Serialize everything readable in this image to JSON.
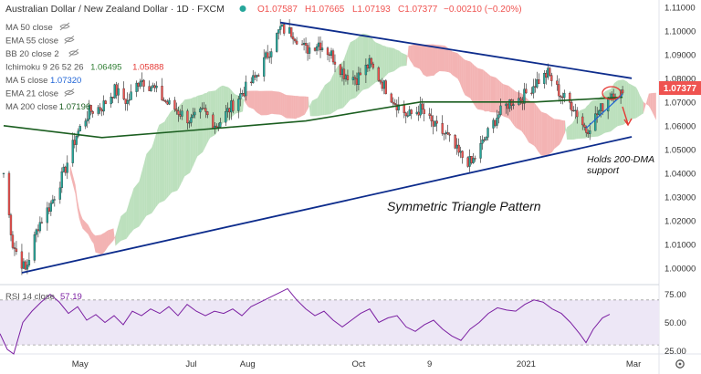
{
  "header": {
    "symbol": "Australian Dollar / New Zealand Dollar · 1D · FXCM",
    "ohlc_o": "O1.07587",
    "ohlc_h": "H1.07665",
    "ohlc_l": "L1.07193",
    "ohlc_c": "C1.07377",
    "change": "−0.00210 (−0.20%)"
  },
  "legend": [
    {
      "label": "MA 50 close",
      "value": "",
      "hidden": true
    },
    {
      "label": "EMA 55 close",
      "value": "",
      "hidden": true
    },
    {
      "label": "BB 20 close 2",
      "value": "",
      "hidden": true
    },
    {
      "label": "Ichimoku 9 26 52 26",
      "value": "1.06495",
      "value2": "1.05888",
      "hidden": false
    },
    {
      "label": "MA 5 close",
      "value": "1.07320",
      "hidden": false
    },
    {
      "label": "EMA 21 close",
      "value": "",
      "hidden": true
    },
    {
      "label": "MA 200 close",
      "value": "1.07196",
      "hidden": false
    }
  ],
  "rsi_legend": {
    "label": "RSI 14 close",
    "value": "57.19"
  },
  "annotations": {
    "pattern": "Symmetric Triangle Pattern",
    "dma_line1": "Holds 200-DMA",
    "dma_line2": "support"
  },
  "price_tag": "1.07377",
  "colors": {
    "bull": "#26a69a",
    "bear": "#ef5350",
    "trendline": "#0d2c8c",
    "ma200": "#1b5e20",
    "ma5": "#1e63d6",
    "cloud_green": "#a5d6a7",
    "cloud_red": "#ef9a9a",
    "rsi_line": "#7b1fa2",
    "rsi_band": "#ede7f6",
    "price_tag": "#ef5350"
  },
  "chart_data": [
    {
      "type": "candlestick",
      "title": "Australian Dollar / New Zealand Dollar · 1D · FXCM",
      "ylim": [
        0.993,
        1.113
      ],
      "y_ticks": [
        "1.00000",
        "1.01000",
        "1.02000",
        "1.03000",
        "1.04000",
        "1.05000",
        "1.06000",
        "1.07000",
        "1.08000",
        "1.09000",
        "1.10000",
        "1.11000"
      ],
      "x_ticks": [
        "May",
        "Jul",
        "Aug",
        "Oct",
        "9",
        "2021",
        "Mar"
      ],
      "close_path": [
        [
          "2020-03-20",
          1.04
        ],
        [
          "2020-03-25",
          1.01
        ],
        [
          "2020-04-01",
          0.999
        ],
        [
          "2020-04-08",
          1.018
        ],
        [
          "2020-04-15",
          1.027
        ],
        [
          "2020-04-22",
          1.04
        ],
        [
          "2020-04-29",
          1.056
        ],
        [
          "2020-05-06",
          1.066
        ],
        [
          "2020-05-13",
          1.068
        ],
        [
          "2020-05-20",
          1.075
        ],
        [
          "2020-05-27",
          1.07
        ],
        [
          "2020-06-03",
          1.08
        ],
        [
          "2020-06-10",
          1.076
        ],
        [
          "2020-06-17",
          1.07
        ],
        [
          "2020-06-24",
          1.066
        ],
        [
          "2020-07-01",
          1.062
        ],
        [
          "2020-07-08",
          1.066
        ],
        [
          "2020-07-15",
          1.06
        ],
        [
          "2020-07-22",
          1.067
        ],
        [
          "2020-07-29",
          1.074
        ],
        [
          "2020-08-05",
          1.08
        ],
        [
          "2020-08-12",
          1.09
        ],
        [
          "2020-08-19",
          1.101
        ],
        [
          "2020-08-26",
          1.099
        ],
        [
          "2020-09-02",
          1.092
        ],
        [
          "2020-09-09",
          1.095
        ],
        [
          "2020-09-16",
          1.09
        ],
        [
          "2020-09-23",
          1.082
        ],
        [
          "2020-09-30",
          1.08
        ],
        [
          "2020-10-07",
          1.086
        ],
        [
          "2020-10-14",
          1.078
        ],
        [
          "2020-10-21",
          1.07
        ],
        [
          "2020-10-28",
          1.064
        ],
        [
          "2020-11-04",
          1.067
        ],
        [
          "2020-11-11",
          1.06
        ],
        [
          "2020-11-18",
          1.056
        ],
        [
          "2020-11-25",
          1.048
        ],
        [
          "2020-12-02",
          1.044
        ],
        [
          "2020-12-09",
          1.054
        ],
        [
          "2020-12-16",
          1.064
        ],
        [
          "2020-12-23",
          1.07
        ],
        [
          "2020-12-30",
          1.072
        ],
        [
          "2021-01-06",
          1.078
        ],
        [
          "2021-01-13",
          1.082
        ],
        [
          "2021-01-20",
          1.073
        ],
        [
          "2021-01-27",
          1.068
        ],
        [
          "2021-02-03",
          1.058
        ],
        [
          "2021-02-10",
          1.066
        ],
        [
          "2021-02-17",
          1.074
        ],
        [
          "2021-02-23",
          1.0738
        ]
      ],
      "series": [
        {
          "name": "MA 200 close",
          "values": [
            [
              "2020-03-20",
              1.06
            ],
            [
              "2020-05-13",
              1.055
            ],
            [
              "2020-07-01",
              1.058
            ],
            [
              "2020-09-02",
              1.062
            ],
            [
              "2020-11-04",
              1.07
            ],
            [
              "2021-01-06",
              1.07
            ],
            [
              "2021-02-23",
              1.072
            ]
          ]
        },
        {
          "name": "MA 5 close",
          "values": [
            [
              "2021-02-03",
              1.059
            ],
            [
              "2021-02-23",
              1.0732
            ]
          ]
        }
      ],
      "trendlines": [
        {
          "name": "upper",
          "from": [
            "2020-08-19",
            1.1035
          ],
          "to": [
            "2021-02-28",
            1.08
          ]
        },
        {
          "name": "lower",
          "from": [
            "2020-03-30",
            0.998
          ],
          "to": [
            "2021-02-28",
            1.0553
          ]
        }
      ],
      "last_price": 1.07377
    },
    {
      "type": "line",
      "title": "RSI 14 close",
      "ylim": [
        22,
        82
      ],
      "y_ticks": [
        "25.00",
        "50.00",
        "75.00"
      ],
      "band": [
        30,
        70
      ],
      "series": [
        {
          "name": "RSI 14 close",
          "values": [
            [
              0,
              40
            ],
            [
              8,
              26
            ],
            [
              15,
              22
            ],
            [
              25,
              50
            ],
            [
              35,
              60
            ],
            [
              45,
              68
            ],
            [
              55,
              75
            ],
            [
              65,
              68
            ],
            [
              75,
              58
            ],
            [
              85,
              64
            ],
            [
              95,
              52
            ],
            [
              105,
              57
            ],
            [
              115,
              50
            ],
            [
              125,
              56
            ],
            [
              135,
              48
            ],
            [
              145,
              60
            ],
            [
              155,
              56
            ],
            [
              165,
              62
            ],
            [
              175,
              58
            ],
            [
              185,
              64
            ],
            [
              195,
              56
            ],
            [
              205,
              66
            ],
            [
              215,
              60
            ],
            [
              225,
              56
            ],
            [
              235,
              60
            ],
            [
              245,
              58
            ],
            [
              255,
              62
            ],
            [
              265,
              56
            ],
            [
              275,
              64
            ],
            [
              285,
              68
            ],
            [
              295,
              72
            ],
            [
              305,
              76
            ],
            [
              315,
              80
            ],
            [
              325,
              70
            ],
            [
              335,
              62
            ],
            [
              345,
              56
            ],
            [
              355,
              60
            ],
            [
              365,
              52
            ],
            [
              375,
              46
            ],
            [
              385,
              52
            ],
            [
              395,
              58
            ],
            [
              405,
              62
            ],
            [
              415,
              50
            ],
            [
              425,
              54
            ],
            [
              435,
              56
            ],
            [
              445,
              46
            ],
            [
              455,
              42
            ],
            [
              465,
              48
            ],
            [
              475,
              52
            ],
            [
              485,
              44
            ],
            [
              495,
              38
            ],
            [
              505,
              34
            ],
            [
              515,
              44
            ],
            [
              525,
              50
            ],
            [
              535,
              58
            ],
            [
              545,
              63
            ],
            [
              555,
              61
            ],
            [
              565,
              60
            ],
            [
              575,
              66
            ],
            [
              585,
              70
            ],
            [
              595,
              68
            ],
            [
              605,
              62
            ],
            [
              615,
              58
            ],
            [
              625,
              50
            ],
            [
              635,
              40
            ],
            [
              642,
              32
            ],
            [
              650,
              44
            ],
            [
              660,
              54
            ],
            [
              668,
              57.19
            ]
          ]
        }
      ]
    }
  ]
}
